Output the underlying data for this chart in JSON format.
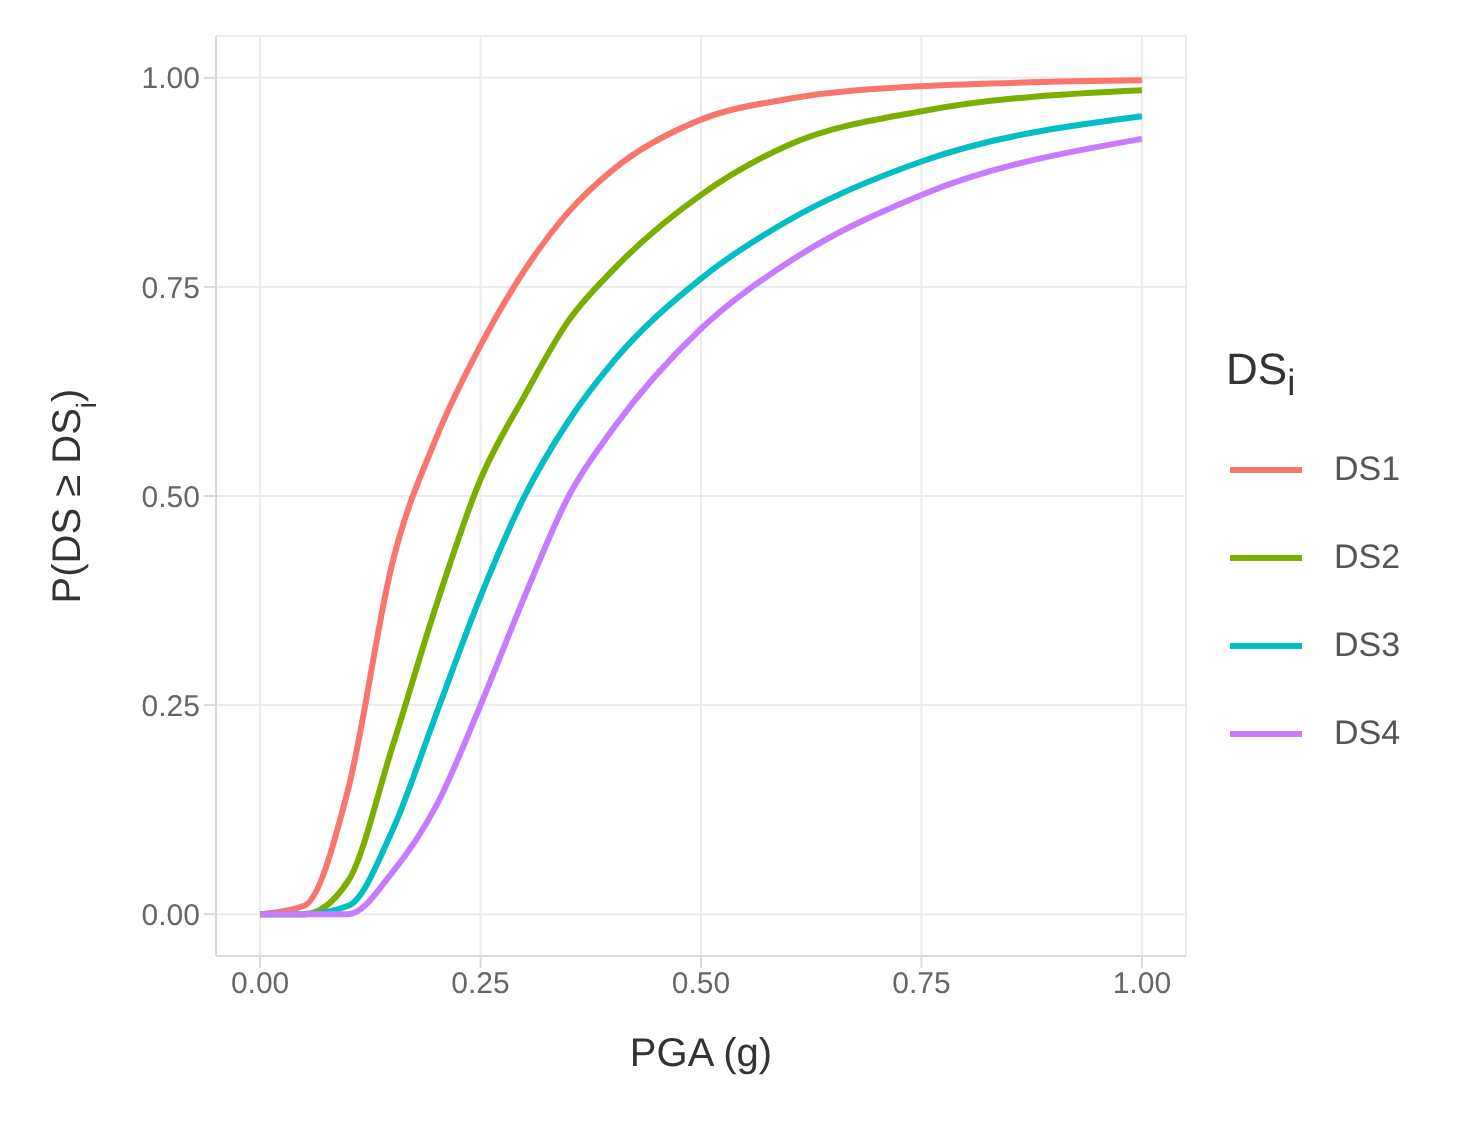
{
  "chart_data": {
    "type": "line",
    "xlabel": "PGA (g)",
    "ylabel": "P(DS ≥ DS$_{i}$)",
    "legend_title": "DS$_{i}$",
    "legend": "right",
    "grid": true,
    "marker": "none",
    "line_style": "solid",
    "x": [
      0,
      0.05,
      0.1,
      0.15,
      0.2,
      0.25,
      0.3,
      0.35,
      0.4,
      0.5,
      0.6,
      0.75,
      1.0
    ],
    "xlim": [
      -0.05,
      1.05
    ],
    "ylim": [
      -0.05,
      1.05
    ],
    "xticks": [
      {
        "value": 0,
        "label": "0.00"
      },
      0.25,
      {
        "value": 0.5,
        "label": "0.50"
      },
      0.75,
      {
        "value": 1,
        "label": "1.00"
      }
    ],
    "yticks": [
      {
        "value": 0,
        "label": "0.00"
      },
      0.25,
      {
        "value": 0.5,
        "label": "0.50"
      },
      0.75,
      {
        "value": 1,
        "label": "1.00"
      }
    ],
    "series": [
      {
        "name": "DS1",
        "color": "#f8766d",
        "values": [
          0,
          0.01,
          0.15,
          0.42,
          0.57,
          0.68,
          0.77,
          0.84,
          0.89,
          0.95,
          0.975,
          0.99,
          0.997
        ]
      },
      {
        "name": "DS2",
        "color": "#7cae00",
        "values": [
          0,
          0.0,
          0.04,
          0.2,
          0.37,
          0.52,
          0.62,
          0.71,
          0.77,
          0.86,
          0.92,
          0.96,
          0.985
        ]
      },
      {
        "name": "DS3",
        "color": "#00bfc4",
        "values": [
          0,
          0.0,
          0.01,
          0.1,
          0.24,
          0.38,
          0.5,
          0.59,
          0.66,
          0.76,
          0.83,
          0.9,
          0.954
        ]
      },
      {
        "name": "DS4",
        "color": "#c77cff",
        "values": [
          0,
          0.0,
          0.0,
          0.05,
          0.13,
          0.25,
          0.38,
          0.5,
          0.58,
          0.7,
          0.78,
          0.86,
          0.927
        ]
      }
    ]
  }
}
